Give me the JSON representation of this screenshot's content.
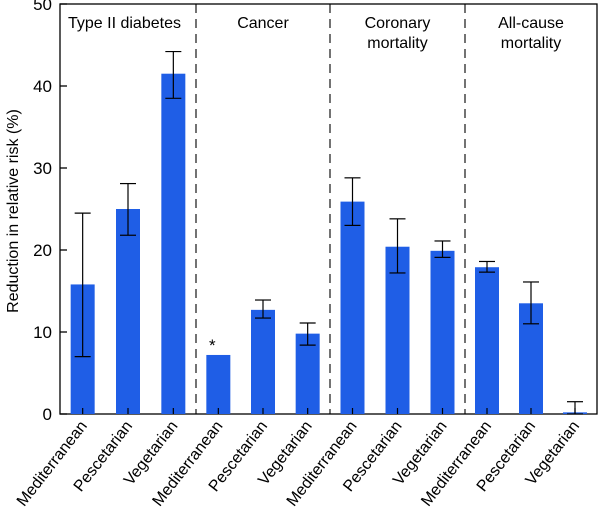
{
  "chart_data": {
    "type": "bar",
    "ylabel": "Reduction in relative risk (%)",
    "ylim": [
      0,
      50
    ],
    "yticks": [
      0,
      10,
      20,
      30,
      40,
      50
    ],
    "bar_color": "#1f5ee6",
    "panels": [
      {
        "title_lines": [
          "Type II diabetes"
        ],
        "categories": [
          "Mediterranean",
          "Pescetarian",
          "Vegetarian"
        ],
        "values": [
          15.8,
          25.0,
          41.5
        ],
        "error_low": [
          7.0,
          21.8,
          38.5
        ],
        "error_high": [
          24.5,
          28.1,
          44.2
        ],
        "annotations": [
          "",
          "",
          ""
        ]
      },
      {
        "title_lines": [
          "Cancer"
        ],
        "categories": [
          "Mediterranean",
          "Pescetarian",
          "Vegetarian"
        ],
        "values": [
          7.2,
          12.7,
          9.8
        ],
        "error_low": [
          null,
          11.7,
          8.4
        ],
        "error_high": [
          null,
          13.9,
          11.1
        ],
        "annotations": [
          "*",
          "",
          ""
        ]
      },
      {
        "title_lines": [
          "Coronary",
          "mortality"
        ],
        "categories": [
          "Mediterranean",
          "Pescetarian",
          "Vegetarian"
        ],
        "values": [
          25.9,
          20.4,
          19.9
        ],
        "error_low": [
          23.0,
          17.2,
          19.1
        ],
        "error_high": [
          28.8,
          23.8,
          21.1
        ],
        "annotations": [
          "",
          "",
          ""
        ]
      },
      {
        "title_lines": [
          "All-cause",
          "mortality"
        ],
        "categories": [
          "Mediterranean",
          "Pescetarian",
          "Vegetarian"
        ],
        "values": [
          17.9,
          13.5,
          0.2
        ],
        "error_low": [
          17.3,
          11.0,
          0.0
        ],
        "error_high": [
          18.6,
          16.1,
          1.5
        ],
        "annotations": [
          "",
          "",
          ""
        ]
      }
    ]
  }
}
